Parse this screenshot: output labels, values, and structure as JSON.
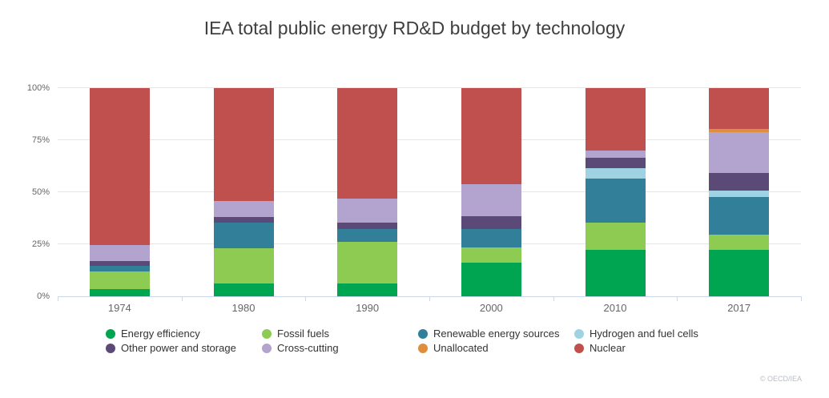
{
  "title": "IEA total public energy RD&D budget by technology",
  "attribution": "© OECD/IEA",
  "chart_data": {
    "type": "bar",
    "stacked": true,
    "stacking": "percent",
    "title": "IEA total public energy RD&D budget by technology",
    "categories": [
      "1974",
      "1980",
      "1990",
      "2000",
      "2010",
      "2017"
    ],
    "series": [
      {
        "name": "Energy efficiency",
        "color": "#00a551",
        "values": [
          3.5,
          6.0,
          6.0,
          16.0,
          22.2,
          22.2
        ]
      },
      {
        "name": "Fossil fuels",
        "color": "#8ecb53",
        "values": [
          8.3,
          17.0,
          20.0,
          7.5,
          13.1,
          7.5
        ]
      },
      {
        "name": "Renewable energy sources",
        "color": "#327f99",
        "values": [
          3.0,
          12.5,
          6.4,
          8.8,
          21.4,
          18.1
        ]
      },
      {
        "name": "Hydrogen and fuel cells",
        "color": "#9fd2e2",
        "values": [
          0,
          0,
          0,
          0,
          4.8,
          2.9
        ]
      },
      {
        "name": "Other power and storage",
        "color": "#5b4a77",
        "values": [
          2.0,
          2.7,
          3.1,
          6.2,
          5.2,
          8.5
        ]
      },
      {
        "name": "Cross-cutting",
        "color": "#b2a4ce",
        "values": [
          8.0,
          7.7,
          11.5,
          15.3,
          3.2,
          19.5
        ]
      },
      {
        "name": "Unallocated",
        "color": "#dd8f3d",
        "values": [
          0,
          0,
          0,
          0,
          0,
          1.7
        ]
      },
      {
        "name": "Nuclear",
        "color": "#c0504d",
        "values": [
          75.2,
          54.1,
          53.0,
          46.2,
          30.1,
          19.6
        ]
      }
    ],
    "y_axis": {
      "tick_labels": [
        "0%",
        "25%",
        "50%",
        "75%",
        "100%"
      ],
      "tick_values": [
        0,
        25,
        50,
        75,
        100
      ],
      "min": 0,
      "max": 100,
      "grid": true
    },
    "xlabel": "",
    "ylabel": "",
    "legend_position": "bottom",
    "legend_columns": 4
  },
  "colors": {
    "background": "#ffffff",
    "grid": "#e6e6e6",
    "axis": "#ccd6eb",
    "axis_label": "#666666",
    "title_text": "#3f3f3f",
    "legend_text": "#333333",
    "attribution_text": "#b9bdc5"
  }
}
